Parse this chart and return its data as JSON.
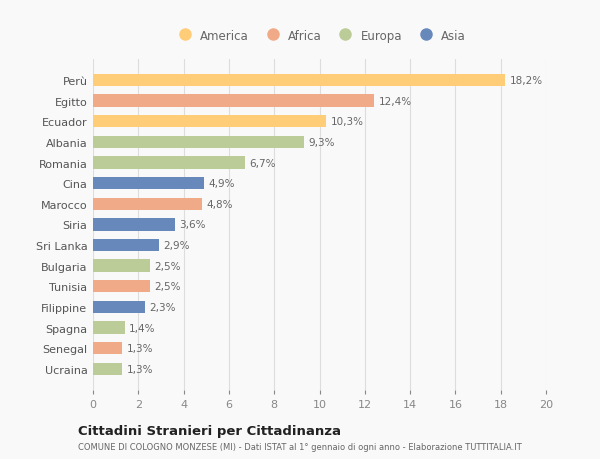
{
  "countries": [
    "Perù",
    "Egitto",
    "Ecuador",
    "Albania",
    "Romania",
    "Cina",
    "Marocco",
    "Siria",
    "Sri Lanka",
    "Bulgaria",
    "Tunisia",
    "Filippine",
    "Spagna",
    "Senegal",
    "Ucraina"
  ],
  "values": [
    18.2,
    12.4,
    10.3,
    9.3,
    6.7,
    4.9,
    4.8,
    3.6,
    2.9,
    2.5,
    2.5,
    2.3,
    1.4,
    1.3,
    1.3
  ],
  "labels": [
    "18,2%",
    "12,4%",
    "10,3%",
    "9,3%",
    "6,7%",
    "4,9%",
    "4,8%",
    "3,6%",
    "2,9%",
    "2,5%",
    "2,5%",
    "2,3%",
    "1,4%",
    "1,3%",
    "1,3%"
  ],
  "continents": [
    "America",
    "Africa",
    "America",
    "Europa",
    "Europa",
    "Asia",
    "Africa",
    "Asia",
    "Asia",
    "Europa",
    "Africa",
    "Asia",
    "Europa",
    "Africa",
    "Europa"
  ],
  "colors": {
    "America": "#FFCC77",
    "Africa": "#F0AA88",
    "Europa": "#BBCC99",
    "Asia": "#6688BB"
  },
  "legend_order": [
    "America",
    "Africa",
    "Europa",
    "Asia"
  ],
  "xlim": [
    0,
    20
  ],
  "xticks": [
    0,
    2,
    4,
    6,
    8,
    10,
    12,
    14,
    16,
    18,
    20
  ],
  "title": "Cittadini Stranieri per Cittadinanza",
  "subtitle": "COMUNE DI COLOGNO MONZESE (MI) - Dati ISTAT al 1° gennaio di ogni anno - Elaborazione TUTTITALIA.IT",
  "bg_color": "#f9f9f9",
  "grid_color": "#dddddd"
}
